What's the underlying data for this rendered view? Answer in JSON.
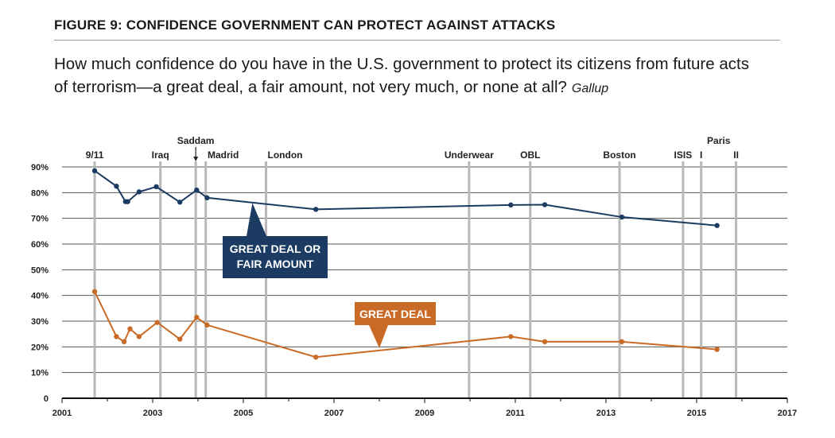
{
  "figure_title": "FIGURE 9: CONFIDENCE GOVERNMENT CAN PROTECT AGAINST ATTACKS",
  "question": "How much confidence do you have in the U.S. government to protect its citizens from future acts of terrorism—a great deal, a fair amount, not very much, or none at all?",
  "source": "Gallup",
  "colors": {
    "navy": "#1c3b63",
    "orange": "#c96b26",
    "grid": "#555555",
    "event_line": "#b8b8b8"
  },
  "chart_data": {
    "type": "line",
    "title": "",
    "xlabel": "",
    "ylabel": "",
    "xlim": [
      2001,
      2017
    ],
    "ylim": [
      0,
      90
    ],
    "x_ticks": [
      "2001",
      "2003",
      "2005",
      "2007",
      "2009",
      "2011",
      "2013",
      "2015",
      "2017"
    ],
    "y_ticks": [
      "0",
      "10%",
      "20%",
      "30%",
      "40%",
      "50%",
      "60%",
      "70%",
      "80%",
      "90%"
    ],
    "grid": true,
    "events": [
      {
        "label": "9/11",
        "x": 2001.72
      },
      {
        "label": "Iraq",
        "x": 2003.17
      },
      {
        "label": "Saddam",
        "x": 2003.95,
        "arrow": true
      },
      {
        "label": "Madrid",
        "x": 2004.17
      },
      {
        "label": "London",
        "x": 2005.5
      },
      {
        "label": "Underwear",
        "x": 2009.98
      },
      {
        "label": "OBL",
        "x": 2011.33
      },
      {
        "label": "Boston",
        "x": 2013.3
      },
      {
        "label": "ISIS",
        "x": 2014.7
      },
      {
        "label": "Paris",
        "x": 2015.1
      },
      {
        "label": "I",
        "x": 2015.1
      },
      {
        "label": "II",
        "x": 2015.87
      }
    ],
    "series": [
      {
        "name": "GREAT DEAL OR FAIR AMOUNT",
        "color": "#1c3b63",
        "points": [
          [
            2001.72,
            88.5
          ],
          [
            2002.2,
            82.5
          ],
          [
            2002.4,
            76.5
          ],
          [
            2002.45,
            76.5
          ],
          [
            2002.7,
            80.3
          ],
          [
            2003.08,
            82.3
          ],
          [
            2003.6,
            76.3
          ],
          [
            2003.97,
            81
          ],
          [
            2004.2,
            78
          ],
          [
            2006.6,
            73.5
          ],
          [
            2010.9,
            75.2
          ],
          [
            2011.65,
            75.3
          ],
          [
            2013.35,
            70.5
          ],
          [
            2015.45,
            67.2
          ]
        ]
      },
      {
        "name": "GREAT DEAL",
        "color": "#c96b26",
        "points": [
          [
            2001.72,
            41.5
          ],
          [
            2002.2,
            24
          ],
          [
            2002.37,
            22
          ],
          [
            2002.5,
            27
          ],
          [
            2002.7,
            24
          ],
          [
            2003.1,
            29.5
          ],
          [
            2003.6,
            23
          ],
          [
            2003.97,
            31.5
          ],
          [
            2004.2,
            28.5
          ],
          [
            2006.6,
            16
          ],
          [
            2010.9,
            24
          ],
          [
            2011.65,
            22
          ],
          [
            2013.35,
            22
          ],
          [
            2015.45,
            19
          ]
        ]
      }
    ],
    "callouts": [
      {
        "text_lines": [
          "GREAT DEAL OR",
          "FAIR AMOUNT"
        ],
        "series": "GREAT DEAL OR FAIR AMOUNT"
      },
      {
        "text_lines": [
          "GREAT DEAL"
        ],
        "series": "GREAT DEAL"
      }
    ]
  }
}
